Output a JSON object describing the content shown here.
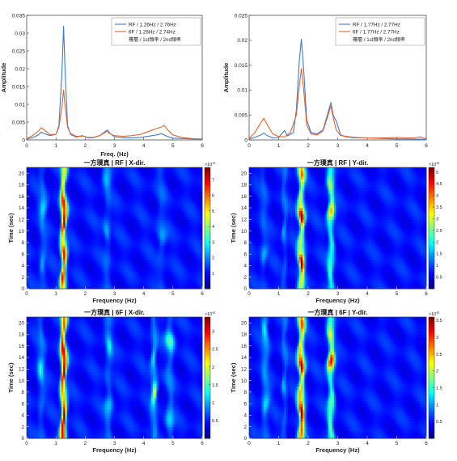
{
  "chart_data": [
    {
      "type": "line",
      "panel": "spectrum-x",
      "xlabel": "Freq. (Hz)",
      "ylabel": "Amplitude",
      "xlim": [
        0,
        6
      ],
      "ylim": [
        0,
        0.035
      ],
      "xticks": [
        "0",
        "1",
        "2",
        "3",
        "4",
        "5",
        "6"
      ],
      "yticks": [
        "0",
        "0.005",
        "0.01",
        "0.015",
        "0.02",
        "0.025",
        "0.03",
        "0.035"
      ],
      "legend_position": "top-right",
      "legend_note": "樓層 / 1st頻率 / 2nd頻率",
      "series": [
        {
          "name": "RF / 1.26Hz / 2.76Hz",
          "color": "#3c7bd6",
          "x": [
            0,
            0.2,
            0.4,
            0.5,
            0.6,
            0.8,
            1.0,
            1.1,
            1.2,
            1.26,
            1.32,
            1.4,
            1.5,
            1.7,
            1.9,
            2.1,
            2.3,
            2.5,
            2.7,
            2.76,
            2.85,
            3.0,
            3.3,
            3.6,
            3.9,
            4.2,
            4.5,
            4.6,
            4.8,
            5.0,
            5.3,
            5.6,
            6.0
          ],
          "y": [
            0.0003,
            0.0006,
            0.0014,
            0.0022,
            0.0018,
            0.0012,
            0.0016,
            0.004,
            0.018,
            0.032,
            0.018,
            0.004,
            0.0015,
            0.0008,
            0.0012,
            0.0006,
            0.0007,
            0.0012,
            0.0025,
            0.0028,
            0.0018,
            0.0009,
            0.0006,
            0.0006,
            0.0007,
            0.0011,
            0.0015,
            0.0018,
            0.001,
            0.0005,
            0.0004,
            0.0003,
            0.0002
          ]
        },
        {
          "name": "6F / 1.26Hz / 2.74Hz",
          "color": "#e8632b",
          "x": [
            0,
            0.2,
            0.4,
            0.5,
            0.6,
            0.8,
            1.0,
            1.1,
            1.2,
            1.26,
            1.32,
            1.4,
            1.5,
            1.7,
            1.9,
            2.1,
            2.3,
            2.5,
            2.7,
            2.74,
            2.85,
            3.0,
            3.3,
            3.6,
            3.9,
            4.1,
            4.3,
            4.45,
            4.6,
            4.7,
            4.8,
            5.0,
            5.3,
            5.6,
            6.0
          ],
          "y": [
            0.0004,
            0.0012,
            0.0025,
            0.0034,
            0.0028,
            0.0015,
            0.0016,
            0.0035,
            0.009,
            0.014,
            0.009,
            0.0035,
            0.0018,
            0.001,
            0.0011,
            0.0007,
            0.0008,
            0.0012,
            0.0022,
            0.0024,
            0.0017,
            0.0012,
            0.001,
            0.0012,
            0.0016,
            0.0022,
            0.0028,
            0.0032,
            0.0036,
            0.0041,
            0.003,
            0.0014,
            0.0007,
            0.0004,
            0.0002
          ]
        }
      ]
    },
    {
      "type": "line",
      "panel": "spectrum-y",
      "xlabel": "",
      "ylabel": "Amplitude",
      "xlim": [
        0,
        6
      ],
      "ylim": [
        0,
        0.025
      ],
      "xticks": [
        "0",
        "1",
        "2",
        "3",
        "4",
        "5",
        "6"
      ],
      "yticks": [
        "0",
        "0.005",
        "0.01",
        "0.015",
        "0.02",
        "0.025"
      ],
      "legend_position": "top-right",
      "legend_note": "樓層 / 1st頻率 / 2nd頻率",
      "series": [
        {
          "name": "RF / 1.77Hz / 2.77Hz",
          "color": "#3c7bd6",
          "x": [
            0,
            0.2,
            0.4,
            0.5,
            0.6,
            0.8,
            1.0,
            1.1,
            1.2,
            1.3,
            1.5,
            1.6,
            1.7,
            1.77,
            1.85,
            1.95,
            2.1,
            2.3,
            2.5,
            2.65,
            2.77,
            2.85,
            2.95,
            3.1,
            3.3,
            3.6,
            4.0,
            4.5,
            5.0,
            5.5,
            6.0
          ],
          "y": [
            0.0002,
            0.0005,
            0.001,
            0.0014,
            0.0009,
            0.0004,
            0.0005,
            0.0012,
            0.0019,
            0.0008,
            0.0015,
            0.006,
            0.016,
            0.0202,
            0.014,
            0.004,
            0.0015,
            0.0012,
            0.002,
            0.005,
            0.0075,
            0.005,
            0.0038,
            0.001,
            0.0006,
            0.0004,
            0.0004,
            0.0003,
            0.0002,
            0.0002,
            0.0001
          ]
        },
        {
          "name": "6F / 1.77Hz / 2.77Hz",
          "color": "#e8632b",
          "x": [
            0,
            0.2,
            0.4,
            0.5,
            0.6,
            0.8,
            1.0,
            1.2,
            1.4,
            1.6,
            1.7,
            1.77,
            1.85,
            1.95,
            2.1,
            2.3,
            2.5,
            2.65,
            2.77,
            2.85,
            2.95,
            3.1,
            3.3,
            3.6,
            4.0,
            4.5,
            5.0,
            5.5,
            5.8,
            6.0
          ],
          "y": [
            0.0003,
            0.0015,
            0.0035,
            0.0043,
            0.0032,
            0.0012,
            0.0007,
            0.0006,
            0.0015,
            0.005,
            0.011,
            0.0143,
            0.01,
            0.003,
            0.0012,
            0.001,
            0.0018,
            0.0045,
            0.0068,
            0.0045,
            0.002,
            0.0009,
            0.0007,
            0.0005,
            0.0004,
            0.0004,
            0.0005,
            0.0004,
            0.0006,
            0.0002
          ]
        }
      ]
    },
    {
      "type": "heatmap",
      "panel": "tf-rf-x",
      "title": "一方璞真 | RF | X-dir.",
      "xlabel": "Frequency (Hz)",
      "ylabel": "Time (sec)",
      "xlim": [
        0,
        6
      ],
      "ylim": [
        0,
        21
      ],
      "xticks": [
        "0",
        "1",
        "2",
        "3",
        "4",
        "5",
        "6"
      ],
      "yticks": [
        "0",
        "2",
        "4",
        "6",
        "8",
        "10",
        "12",
        "14",
        "16",
        "18",
        "20"
      ],
      "colorbar_exponent": "×10",
      "colorbar_exponent_power": "-6",
      "colorbar_ticks": [
        "1",
        "2",
        "3",
        "4",
        "5",
        "6",
        "7"
      ],
      "colorbar_max": 7.8,
      "ridges": [
        {
          "f": 1.26,
          "width": 0.09,
          "peaks": [
            {
              "t": 18,
              "v": 4.5
            },
            {
              "t": 15,
              "v": 6.0
            },
            {
              "t": 11.5,
              "v": 7.8
            },
            {
              "t": 6,
              "v": 7.0
            },
            {
              "t": 2,
              "v": 6.5
            }
          ],
          "floor": 4.0
        },
        {
          "f": 0.55,
          "width": 0.12,
          "peaks": [
            {
              "t": 14,
              "v": 1.8
            },
            {
              "t": 4,
              "v": 1.5
            }
          ],
          "floor": 0.6
        },
        {
          "f": 2.75,
          "width": 0.12,
          "peaks": [
            {
              "t": 19,
              "v": 1.6
            },
            {
              "t": 10,
              "v": 1.4
            }
          ],
          "floor": 0.5
        },
        {
          "f": 4.6,
          "width": 0.15,
          "peaks": [
            {
              "t": 9,
              "v": 1.4
            }
          ],
          "floor": 0.4
        }
      ]
    },
    {
      "type": "heatmap",
      "panel": "tf-rf-y",
      "title": "一方璞真 | RF | Y-dir.",
      "xlabel": "Frequency (Hz)",
      "ylabel": "Time (sec)",
      "xlim": [
        0,
        6
      ],
      "ylim": [
        0,
        21
      ],
      "xticks": [
        "0",
        "1",
        "2",
        "3",
        "4",
        "5",
        "6"
      ],
      "yticks": [
        "0",
        "2",
        "4",
        "6",
        "8",
        "10",
        "12",
        "14",
        "16",
        "18",
        "20"
      ],
      "colorbar_exponent": "×10",
      "colorbar_exponent_power": "-6",
      "colorbar_ticks": [
        "0.5",
        "1",
        "1.5",
        "2",
        "2.5",
        "3",
        "3.5",
        "4",
        "4.5",
        "5"
      ],
      "colorbar_max": 5.2,
      "ridges": [
        {
          "f": 1.77,
          "width": 0.1,
          "peaks": [
            {
              "t": 20,
              "v": 3.6
            },
            {
              "t": 16,
              "v": 2.8
            },
            {
              "t": 12.5,
              "v": 5.0
            },
            {
              "t": 9,
              "v": 2.5
            },
            {
              "t": 4.5,
              "v": 5.2
            },
            {
              "t": 1,
              "v": 2.5
            }
          ],
          "floor": 1.8
        },
        {
          "f": 2.77,
          "width": 0.1,
          "peaks": [
            {
              "t": 18,
              "v": 2.4
            },
            {
              "t": 13.5,
              "v": 3.4
            },
            {
              "t": 8,
              "v": 1.8
            },
            {
              "t": 3,
              "v": 1.8
            }
          ],
          "floor": 1.2
        },
        {
          "f": 1.2,
          "width": 0.08,
          "peaks": [
            {
              "t": 10,
              "v": 0.9
            }
          ],
          "floor": 0.4
        },
        {
          "f": 0.5,
          "width": 0.12,
          "peaks": [
            {
              "t": 6,
              "v": 0.9
            }
          ],
          "floor": 0.3
        }
      ]
    },
    {
      "type": "heatmap",
      "panel": "tf-6f-x",
      "title": "一方璞真 | 6F | X-dir.",
      "xlabel": "Frequency (Hz)",
      "ylabel": "Time (sec)",
      "xlim": [
        0,
        6
      ],
      "ylim": [
        0,
        21
      ],
      "xticks": [
        "0",
        "1",
        "2",
        "3",
        "4",
        "5",
        "6"
      ],
      "yticks": [
        "0",
        "2",
        "4",
        "6",
        "8",
        "10",
        "12",
        "14",
        "16",
        "18",
        "20"
      ],
      "colorbar_exponent": "×10",
      "colorbar_exponent_power": "-6",
      "colorbar_ticks": [
        "0.5",
        "1",
        "1.5",
        "2",
        "2.5",
        "3"
      ],
      "colorbar_max": 3.4,
      "ridges": [
        {
          "f": 1.26,
          "width": 0.09,
          "peaks": [
            {
              "t": 19,
              "v": 2.4
            },
            {
              "t": 15.5,
              "v": 2.8
            },
            {
              "t": 11.5,
              "v": 3.4
            },
            {
              "t": 4,
              "v": 3.3
            },
            {
              "t": 1,
              "v": 2.9
            }
          ],
          "floor": 2.2
        },
        {
          "f": 4.35,
          "width": 0.1,
          "peaks": [
            {
              "t": 8,
              "v": 1.9
            },
            {
              "t": 14,
              "v": 1.0
            }
          ],
          "floor": 0.4
        },
        {
          "f": 4.9,
          "width": 0.13,
          "peaks": [
            {
              "t": 17,
              "v": 1.3
            },
            {
              "t": 3,
              "v": 0.8
            }
          ],
          "floor": 0.3
        },
        {
          "f": 0.5,
          "width": 0.12,
          "peaks": [
            {
              "t": 12,
              "v": 0.9
            }
          ],
          "floor": 0.3
        },
        {
          "f": 2.8,
          "width": 0.12,
          "peaks": [
            {
              "t": 16,
              "v": 0.8
            },
            {
              "t": 6,
              "v": 0.7
            }
          ],
          "floor": 0.3
        }
      ]
    },
    {
      "type": "heatmap",
      "panel": "tf-6f-y",
      "title": "一方璞真 | 6F | Y-dir.",
      "xlabel": "Frequency (Hz)",
      "ylabel": "Time (sec)",
      "xlim": [
        0,
        6
      ],
      "ylim": [
        0,
        21
      ],
      "xticks": [
        "0",
        "1",
        "2",
        "3",
        "4",
        "5",
        "6"
      ],
      "yticks": [
        "0",
        "2",
        "4",
        "6",
        "8",
        "10",
        "12",
        "14",
        "16",
        "18",
        "20"
      ],
      "colorbar_exponent": "×10",
      "colorbar_exponent_power": "-6",
      "colorbar_ticks": [
        "0.5",
        "1",
        "1.5",
        "2",
        "2.5",
        "3",
        "3.5"
      ],
      "colorbar_max": 3.6,
      "ridges": [
        {
          "f": 1.77,
          "width": 0.1,
          "peaks": [
            {
              "t": 20,
              "v": 2.6
            },
            {
              "t": 16,
              "v": 2.4
            },
            {
              "t": 12.5,
              "v": 3.3
            },
            {
              "t": 8.5,
              "v": 2.2
            },
            {
              "t": 4.5,
              "v": 3.6
            },
            {
              "t": 1,
              "v": 2.4
            }
          ],
          "floor": 1.7
        },
        {
          "f": 2.77,
          "width": 0.1,
          "peaks": [
            {
              "t": 18,
              "v": 1.9
            },
            {
              "t": 13.5,
              "v": 3.2
            },
            {
              "t": 7,
              "v": 1.5
            },
            {
              "t": 2,
              "v": 1.4
            }
          ],
          "floor": 1.0
        },
        {
          "f": 0.55,
          "width": 0.12,
          "peaks": [
            {
              "t": 19,
              "v": 1.0
            },
            {
              "t": 6,
              "v": 0.8
            }
          ],
          "floor": 0.4
        },
        {
          "f": 1.2,
          "width": 0.08,
          "peaks": [
            {
              "t": 9,
              "v": 0.7
            }
          ],
          "floor": 0.3
        }
      ]
    }
  ]
}
